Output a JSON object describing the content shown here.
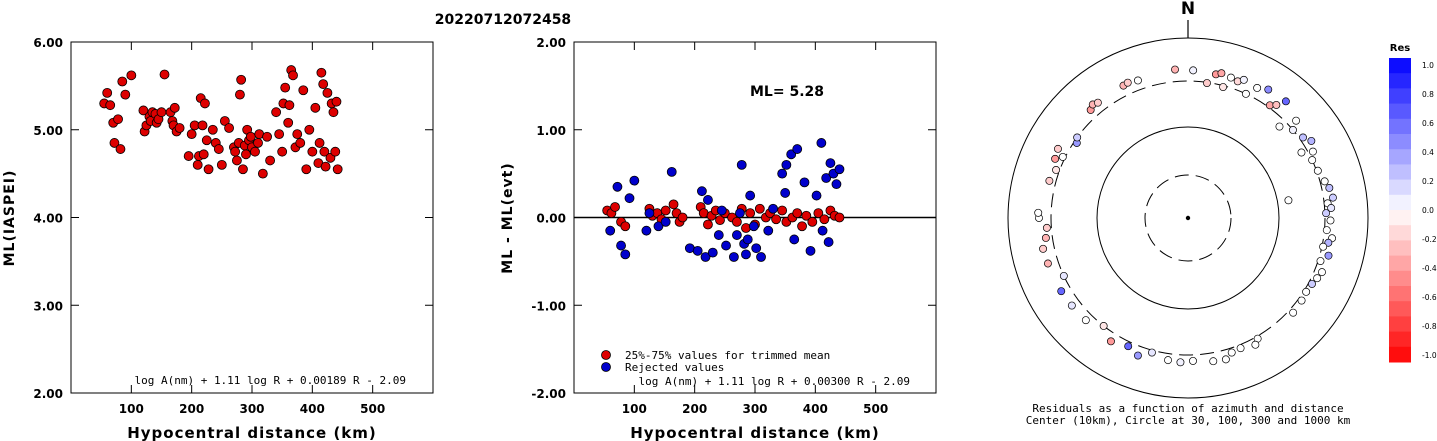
{
  "figure_title": "20220712072458",
  "chart_data": [
    {
      "type": "scatter",
      "title": "",
      "xlabel": "Hypocentral distance (km)",
      "ylabel": "ML(IASPEI)",
      "xlim": [
        0,
        600
      ],
      "ylim": [
        2.0,
        6.0
      ],
      "x_ticks": [
        "100",
        "200",
        "300",
        "400",
        "500"
      ],
      "y_ticks": [
        "6.00",
        "5.00",
        "4.00",
        "3.00",
        "2.00"
      ],
      "formula": "log A(nm) + 1.11 log R + 0.00189 R - 2.09",
      "point_color": "#dd0000",
      "x": [
        55,
        60,
        65,
        70,
        72,
        78,
        82,
        85,
        90,
        100,
        120,
        122,
        125,
        130,
        132,
        135,
        140,
        142,
        145,
        150,
        155,
        165,
        168,
        170,
        172,
        175,
        180,
        195,
        200,
        205,
        210,
        212,
        215,
        218,
        220,
        222,
        225,
        228,
        235,
        240,
        245,
        250,
        255,
        262,
        270,
        272,
        275,
        278,
        280,
        282,
        285,
        288,
        290,
        292,
        295,
        298,
        300,
        305,
        310,
        312,
        318,
        325,
        330,
        340,
        345,
        350,
        352,
        355,
        360,
        362,
        365,
        368,
        372,
        375,
        380,
        385,
        390,
        395,
        400,
        405,
        410,
        412,
        415,
        418,
        420,
        422,
        425,
        430,
        432,
        435,
        438,
        440,
        442
      ],
      "y": [
        5.3,
        5.42,
        5.28,
        5.08,
        4.85,
        5.12,
        4.78,
        5.55,
        5.4,
        5.62,
        5.22,
        4.98,
        5.05,
        5.15,
        5.1,
        5.2,
        5.18,
        5.08,
        5.12,
        5.2,
        5.63,
        5.2,
        5.1,
        5.05,
        5.25,
        4.98,
        5.02,
        4.7,
        4.95,
        5.05,
        4.6,
        4.7,
        5.36,
        5.05,
        4.72,
        5.3,
        4.88,
        4.55,
        5.0,
        4.85,
        4.78,
        4.6,
        5.1,
        5.02,
        4.8,
        4.75,
        4.65,
        4.85,
        5.4,
        5.57,
        4.55,
        4.82,
        4.72,
        5.0,
        4.88,
        4.92,
        4.8,
        4.75,
        4.85,
        4.95,
        4.5,
        4.92,
        4.65,
        5.2,
        4.95,
        4.75,
        5.3,
        5.48,
        5.08,
        5.28,
        5.68,
        5.62,
        4.8,
        4.95,
        4.85,
        5.45,
        4.55,
        5.0,
        4.75,
        5.25,
        4.62,
        4.85,
        5.65,
        5.52,
        4.75,
        4.58,
        5.42,
        4.68,
        5.3,
        5.2,
        4.75,
        5.32,
        4.55
      ]
    },
    {
      "type": "scatter",
      "title": "",
      "xlabel": "Hypocentral distance (km)",
      "ylabel": "ML - ML(evt)",
      "xlim": [
        0,
        600
      ],
      "ylim": [
        -2.0,
        2.0
      ],
      "x_ticks": [
        "100",
        "200",
        "300",
        "400",
        "500"
      ],
      "y_ticks": [
        "2.00",
        "1.00",
        "0.00",
        "-1.00",
        "-2.00"
      ],
      "annotation": "ML= 5.28",
      "formula": "log A(nm) + 1.11 log R + 0.00300 R - 2.09",
      "legend_position": "bottom-left",
      "series": [
        {
          "name": "25%-75% values for trimmed mean",
          "color": "#dd0000",
          "x": [
            55,
            62,
            68,
            78,
            85,
            125,
            130,
            138,
            145,
            152,
            165,
            170,
            175,
            180,
            210,
            215,
            222,
            228,
            235,
            242,
            250,
            262,
            270,
            278,
            285,
            292,
            300,
            308,
            318,
            325,
            335,
            345,
            352,
            362,
            370,
            378,
            385,
            395,
            405,
            415,
            425,
            432,
            440
          ],
          "y": [
            0.08,
            0.05,
            0.12,
            -0.05,
            -0.1,
            0.1,
            0.02,
            0.05,
            -0.02,
            0.08,
            0.15,
            0.05,
            -0.05,
            0.0,
            0.12,
            0.05,
            -0.08,
            0.02,
            0.08,
            -0.03,
            0.05,
            0.0,
            -0.05,
            0.1,
            -0.12,
            0.05,
            -0.08,
            0.1,
            0.0,
            0.05,
            -0.02,
            0.08,
            -0.05,
            0.0,
            0.05,
            -0.1,
            0.02,
            -0.05,
            0.05,
            -0.02,
            0.08,
            0.02,
            0.0
          ]
        },
        {
          "name": "Rejected values",
          "color": "#0000cc",
          "x": [
            60,
            72,
            78,
            85,
            92,
            100,
            120,
            125,
            140,
            152,
            162,
            192,
            205,
            212,
            218,
            222,
            230,
            240,
            245,
            252,
            265,
            270,
            275,
            278,
            282,
            285,
            288,
            292,
            298,
            302,
            310,
            322,
            330,
            345,
            350,
            352,
            360,
            365,
            370,
            382,
            392,
            402,
            410,
            412,
            418,
            422,
            425,
            430,
            435,
            440
          ],
          "y": [
            -0.15,
            0.35,
            -0.32,
            -0.42,
            0.22,
            0.42,
            -0.15,
            0.05,
            -0.1,
            -0.05,
            0.52,
            -0.35,
            -0.38,
            0.3,
            -0.45,
            0.2,
            -0.4,
            -0.2,
            0.08,
            -0.32,
            -0.45,
            -0.2,
            0.05,
            0.6,
            -0.3,
            -0.42,
            -0.25,
            0.25,
            -0.1,
            -0.35,
            -0.45,
            -0.15,
            0.1,
            0.5,
            0.28,
            0.6,
            0.72,
            -0.25,
            0.78,
            0.4,
            -0.38,
            0.25,
            0.85,
            -0.15,
            0.45,
            -0.28,
            0.62,
            0.5,
            0.38,
            0.55
          ]
        }
      ]
    },
    {
      "type": "polar-scatter",
      "title": "",
      "north_label": "N",
      "caption_line1": "Residuals as a function of azimuth and distance",
      "caption_line2": "Center (10km), Circle at 30, 100, 300 and 1000 km",
      "rings_km": [
        30,
        100,
        300,
        1000
      ],
      "colorbar_title": "Res",
      "colorbar_ticks": [
        "1.0",
        "0.8",
        "0.6",
        "0.4",
        "0.2",
        "0.0",
        "-0.2",
        "-0.4",
        "-0.6",
        "-0.8",
        "-1.0"
      ],
      "points": [
        {
          "az": 355,
          "dist": 420,
          "res": -0.3
        },
        {
          "az": 2,
          "dist": 405,
          "res": 0.05
        },
        {
          "az": 8,
          "dist": 295,
          "res": -0.2
        },
        {
          "az": 11,
          "dist": 390,
          "res": -0.4
        },
        {
          "az": 13,
          "dist": 415,
          "res": -0.35
        },
        {
          "az": 15,
          "dist": 290,
          "res": -0.1
        },
        {
          "az": 17,
          "dist": 395,
          "res": 0.0
        },
        {
          "az": 20,
          "dist": 380,
          "res": -0.15
        },
        {
          "az": 22,
          "dist": 420,
          "res": 0.05
        },
        {
          "az": 25,
          "dist": 300,
          "res": 0.0
        },
        {
          "az": 28,
          "dist": 400,
          "res": 0.0
        },
        {
          "az": 32,
          "dist": 450,
          "res": 0.45
        },
        {
          "az": 36,
          "dist": 320,
          "res": -0.35
        },
        {
          "az": 38,
          "dist": 360,
          "res": -0.25
        },
        {
          "az": 40,
          "dist": 460,
          "res": 0.6
        },
        {
          "az": 45,
          "dist": 250,
          "res": 0.0
        },
        {
          "az": 48,
          "dist": 380,
          "res": 0.0
        },
        {
          "az": 50,
          "dist": 300,
          "res": 0.05
        },
        {
          "az": 55,
          "dist": 330,
          "res": 0.25
        },
        {
          "az": 58,
          "dist": 380,
          "res": 0.3
        },
        {
          "az": 60,
          "dist": 260,
          "res": 0.0
        },
        {
          "az": 62,
          "dist": 340,
          "res": 0.0
        },
        {
          "az": 65,
          "dist": 300,
          "res": 0.0
        },
        {
          "az": 70,
          "dist": 310,
          "res": 0.0
        },
        {
          "az": 75,
          "dist": 340,
          "res": 0.0
        },
        {
          "az": 78,
          "dist": 370,
          "res": 0.25
        },
        {
          "az": 80,
          "dist": 130,
          "res": 0.0
        },
        {
          "az": 82,
          "dist": 390,
          "res": 0.2
        },
        {
          "az": 84,
          "dist": 330,
          "res": 0.0
        },
        {
          "az": 86,
          "dist": 360,
          "res": 0.1
        },
        {
          "az": 88,
          "dist": 310,
          "res": 0.2
        },
        {
          "az": 91,
          "dist": 350,
          "res": 0.0
        },
        {
          "az": 95,
          "dist": 320,
          "res": 0.0
        },
        {
          "az": 98,
          "dist": 380,
          "res": 0.0
        },
        {
          "az": 100,
          "dist": 350,
          "res": 0.3
        },
        {
          "az": 102,
          "dist": 310,
          "res": 0.0
        },
        {
          "az": 105,
          "dist": 380,
          "res": 0.4
        },
        {
          "az": 108,
          "dist": 320,
          "res": 0.0
        },
        {
          "az": 112,
          "dist": 370,
          "res": 0.0
        },
        {
          "az": 115,
          "dist": 350,
          "res": 0.0
        },
        {
          "az": 118,
          "dist": 330,
          "res": 0.2
        },
        {
          "az": 122,
          "dist": 320,
          "res": 0.0
        },
        {
          "az": 126,
          "dist": 330,
          "res": 0.0
        },
        {
          "az": 132,
          "dist": 340,
          "res": 0.0
        },
        {
          "az": 150,
          "dist": 320,
          "res": 0.0
        },
        {
          "az": 152,
          "dist": 360,
          "res": 0.0
        },
        {
          "az": 158,
          "dist": 330,
          "res": 0.0
        },
        {
          "az": 162,
          "dist": 340,
          "res": 0.0
        },
        {
          "az": 165,
          "dist": 390,
          "res": 0.0
        },
        {
          "az": 170,
          "dist": 380,
          "res": 0.0
        },
        {
          "az": 178,
          "dist": 355,
          "res": 0.0
        },
        {
          "az": 183,
          "dist": 370,
          "res": 0.05
        },
        {
          "az": 188,
          "dist": 360,
          "res": 0.0
        },
        {
          "az": 195,
          "dist": 320,
          "res": 0.1
        },
        {
          "az": 200,
          "dist": 390,
          "res": 0.4
        },
        {
          "az": 205,
          "dist": 340,
          "res": 0.6
        },
        {
          "az": 212,
          "dist": 380,
          "res": -0.4
        },
        {
          "az": 218,
          "dist": 300,
          "res": -0.1
        },
        {
          "az": 225,
          "dist": 370,
          "res": 0.0
        },
        {
          "az": 233,
          "dist": 380,
          "res": 0.1
        },
        {
          "az": 240,
          "dist": 390,
          "res": 0.6
        },
        {
          "az": 245,
          "dist": 300,
          "res": 0.1
        },
        {
          "az": 252,
          "dist": 400,
          "res": -0.3
        },
        {
          "az": 258,
          "dist": 410,
          "res": -0.2
        },
        {
          "az": 262,
          "dist": 360,
          "res": -0.3
        },
        {
          "az": 266,
          "dist": 340,
          "res": -0.2
        },
        {
          "az": 270,
          "dist": 420,
          "res": 0.0
        },
        {
          "az": 272,
          "dist": 430,
          "res": 0.0
        },
        {
          "az": 285,
          "dist": 360,
          "res": -0.2
        },
        {
          "az": 290,
          "dist": 330,
          "res": -0.1
        },
        {
          "az": 294,
          "dist": 380,
          "res": -0.4
        },
        {
          "az": 296,
          "dist": 320,
          "res": 0.0
        },
        {
          "az": 298,
          "dist": 400,
          "res": -0.2
        },
        {
          "az": 304,
          "dist": 280,
          "res": 0.4
        },
        {
          "az": 306,
          "dist": 300,
          "res": 0.2
        },
        {
          "az": 318,
          "dist": 380,
          "res": -0.4
        },
        {
          "az": 320,
          "dist": 410,
          "res": -0.3
        },
        {
          "az": 322,
          "dist": 390,
          "res": -0.2
        },
        {
          "az": 334,
          "dist": 400,
          "res": -0.3
        },
        {
          "az": 336,
          "dist": 410,
          "res": -0.2
        },
        {
          "az": 340,
          "dist": 390,
          "res": 0.0
        }
      ]
    }
  ]
}
